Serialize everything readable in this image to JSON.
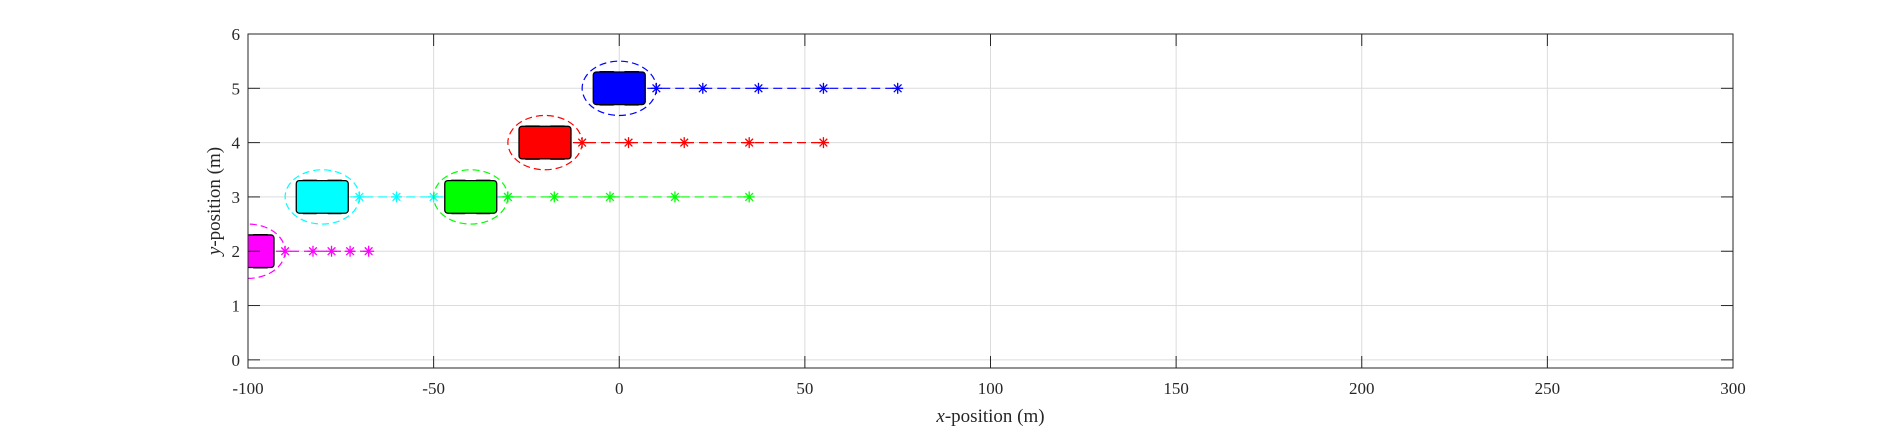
{
  "chart_data": {
    "type": "scatter",
    "title": "",
    "xlabel_var": "x",
    "xlabel_rest": "-position (m)",
    "ylabel_var": "y",
    "ylabel_rest": "-position (m)",
    "xlim": [
      -100,
      300
    ],
    "ylim": [
      -0.15,
      6
    ],
    "xticks": [
      -100,
      -50,
      0,
      50,
      100,
      150,
      200,
      250,
      300
    ],
    "yticks": [
      0,
      1,
      2,
      3,
      4,
      5,
      6
    ],
    "grid": true,
    "vehicle_half_length_m": 7,
    "vehicle_half_width_m": 0.3,
    "ellipse_radius_x_m": 10,
    "ellipse_radius_y_m": 0.5,
    "series": [
      {
        "color": "#0000ff",
        "vehicle_x": 0,
        "vehicle_y": 5,
        "trajectory_x": [
          10,
          22.5,
          37.5,
          55,
          75
        ]
      },
      {
        "color": "#ff0000",
        "vehicle_x": -20,
        "vehicle_y": 4,
        "trajectory_x": [
          -10,
          2.5,
          17.5,
          35,
          55
        ]
      },
      {
        "color": "#00ffff",
        "vehicle_x": -80,
        "vehicle_y": 3,
        "trajectory_x": [
          -70,
          -60,
          -50,
          -40,
          -30
        ]
      },
      {
        "color": "#00ff00",
        "vehicle_x": -40,
        "vehicle_y": 3,
        "trajectory_x": [
          -30,
          -17.5,
          -2.5,
          15,
          35
        ]
      },
      {
        "color": "#ff00ff",
        "vehicle_x": -100,
        "vehicle_y": 2,
        "trajectory_x": [
          -90,
          -82.5,
          -77.5,
          -72.5,
          -67.5
        ]
      }
    ]
  }
}
